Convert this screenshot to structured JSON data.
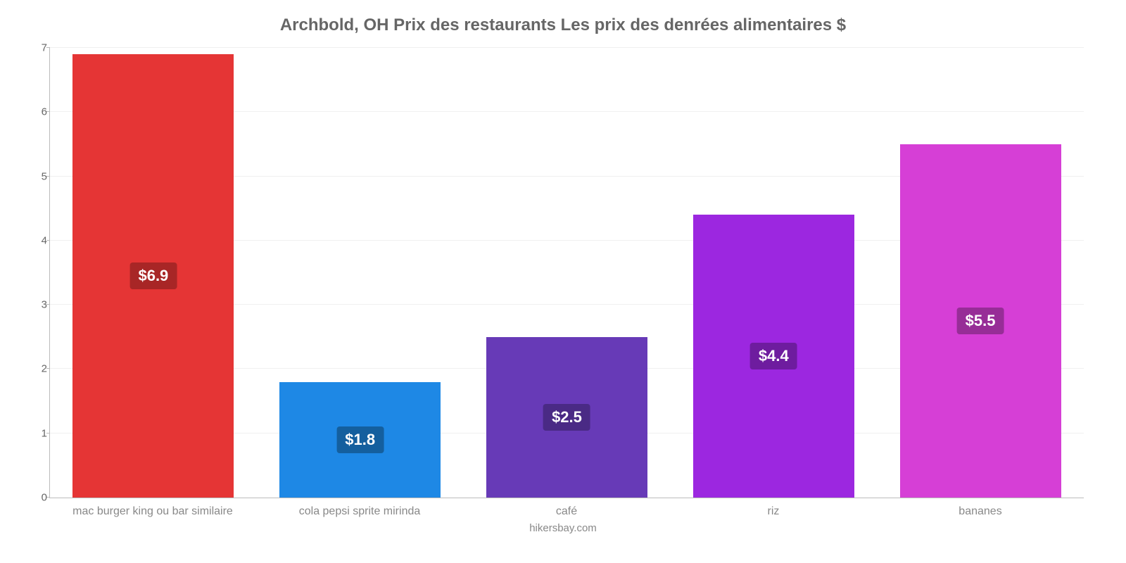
{
  "chart": {
    "type": "bar",
    "title": "Archbold, OH Prix des restaurants Les prix des denrées alimentaires $",
    "title_fontsize": 24,
    "title_color": "#666666",
    "source": "hikersbay.com",
    "background_color": "#ffffff",
    "grid_color": "#f0f0f0",
    "axis_color": "#bbbbbb",
    "label_color": "#888888",
    "label_fontsize": 16,
    "value_label_fontsize": 22,
    "ylim": [
      0,
      7
    ],
    "ytick_step": 1,
    "yticks": [
      0,
      1,
      2,
      3,
      4,
      5,
      6,
      7
    ],
    "bar_width": 0.78,
    "categories": [
      "mac burger king ou bar similaire",
      "cola pepsi sprite mirinda",
      "café",
      "riz",
      "bananes"
    ],
    "values": [
      6.9,
      1.8,
      2.5,
      4.4,
      5.5
    ],
    "value_labels": [
      "$6.9",
      "$1.8",
      "$2.5",
      "$4.4",
      "$5.5"
    ],
    "bar_colors": [
      "#e53535",
      "#1e88e5",
      "#673ab7",
      "#9c27e0",
      "#d63fd6"
    ],
    "label_bg_colors": [
      "#a82626",
      "#145f9e",
      "#4a2a85",
      "#6e1c9f",
      "#972d97"
    ]
  }
}
